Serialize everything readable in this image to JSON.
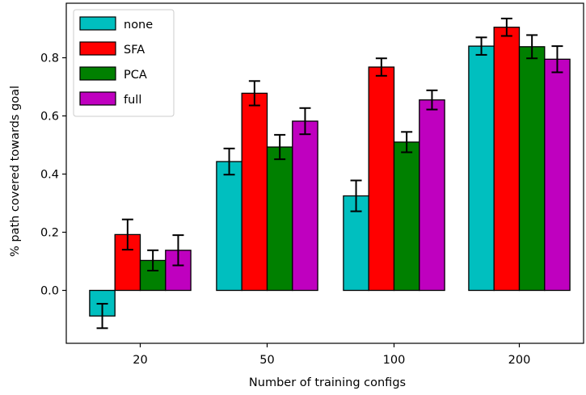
{
  "chart_data": {
    "type": "bar",
    "title": "",
    "xlabel": "Number of training configs",
    "ylabel": "% path covered towards goal",
    "categories": [
      "20",
      "50",
      "100",
      "200"
    ],
    "yticks": [
      "0.0",
      "0.2",
      "0.4",
      "0.6",
      "0.8"
    ],
    "ytick_values": [
      0.0,
      0.2,
      0.4,
      0.6,
      0.8
    ],
    "ylim": [
      -0.2,
      0.97
    ],
    "grid": false,
    "legend_position": "top-left",
    "series": [
      {
        "name": "none",
        "color": "#00bfbf",
        "values": [
          -0.088,
          0.443,
          0.325,
          0.84
        ],
        "errors": [
          0.042,
          0.045,
          0.053,
          0.03
        ]
      },
      {
        "name": "SFA",
        "color": "#ff0000",
        "values": [
          0.192,
          0.678,
          0.768,
          0.905
        ],
        "errors": [
          0.052,
          0.042,
          0.03,
          0.03
        ]
      },
      {
        "name": "PCA",
        "color": "#008000",
        "values": [
          0.103,
          0.493,
          0.51,
          0.838
        ],
        "errors": [
          0.035,
          0.042,
          0.035,
          0.04
        ]
      },
      {
        "name": "full",
        "color": "#bf00bf",
        "values": [
          0.138,
          0.582,
          0.655,
          0.795
        ],
        "errors": [
          0.052,
          0.045,
          0.033,
          0.045
        ]
      }
    ]
  }
}
